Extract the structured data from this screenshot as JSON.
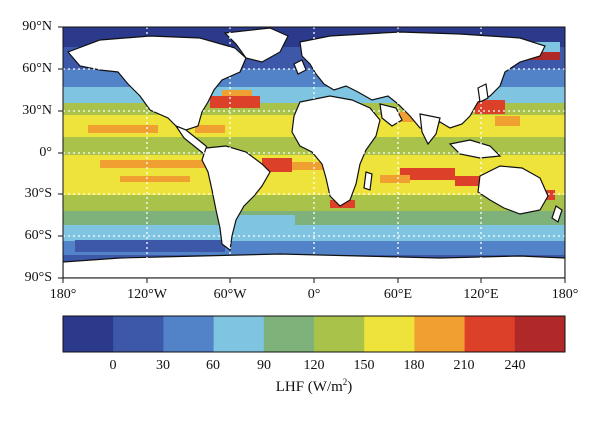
{
  "map": {
    "lat_labels": [
      "90°N",
      "60°N",
      "30°N",
      "0°",
      "30°S",
      "60°S",
      "90°S"
    ],
    "lon_labels": [
      "180°",
      "120°W",
      "60°W",
      "0°",
      "60°E",
      "120°E",
      "180°"
    ],
    "gridlines": true
  },
  "colorbar": {
    "ticks": [
      "0",
      "30",
      "60",
      "90",
      "120",
      "150",
      "180",
      "210",
      "240"
    ],
    "title_text": "LHF (W/m",
    "title_sup": "2",
    "title_close": ")",
    "colors": [
      "#2b3a8a",
      "#3d58a8",
      "#5282c8",
      "#7fc4e0",
      "#7fb27a",
      "#a8c24a",
      "#ede33a",
      "#f0a030",
      "#dc4028",
      "#b02828"
    ]
  }
}
